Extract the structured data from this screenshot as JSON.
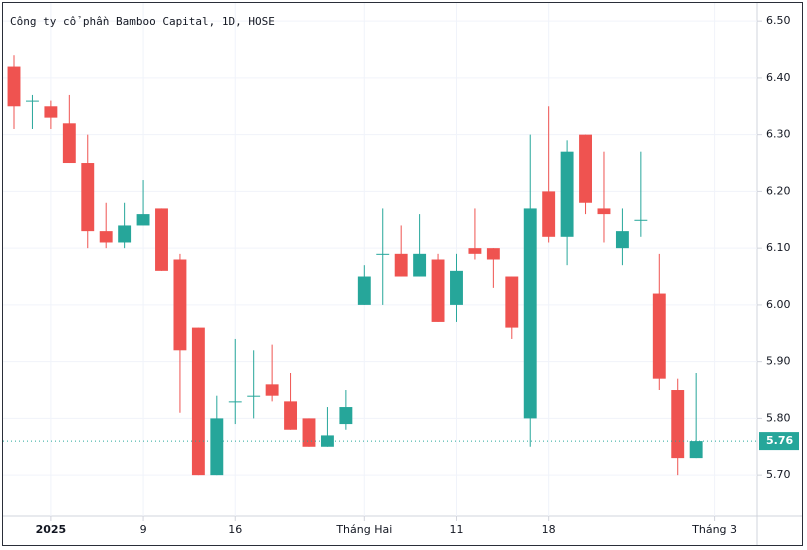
{
  "chart_data": {
    "type": "candlestick",
    "title": "Công ty cổ phần Bamboo Capital, 1D, HOSE",
    "open": [
      6.42,
      6.36,
      6.35,
      6.32,
      6.25,
      6.13,
      6.11,
      6.14,
      6.17,
      6.08,
      5.96,
      5.7,
      5.83,
      5.84,
      5.86,
      5.83,
      5.8,
      5.75,
      5.79,
      6.0,
      6.09,
      6.09,
      6.05,
      6.08,
      6.0,
      6.1,
      6.1,
      6.05,
      5.8,
      6.2,
      6.12,
      6.3,
      6.17,
      6.1,
      6.15,
      6.02,
      5.85,
      5.73
    ],
    "high": [
      6.44,
      6.37,
      6.36,
      6.37,
      6.3,
      6.18,
      6.18,
      6.22,
      6.17,
      6.09,
      5.96,
      5.84,
      5.94,
      5.92,
      5.93,
      5.88,
      5.8,
      5.82,
      5.85,
      6.07,
      6.17,
      6.14,
      6.16,
      6.09,
      6.09,
      6.17,
      6.1,
      6.05,
      6.3,
      6.35,
      6.29,
      6.3,
      6.27,
      6.17,
      6.27,
      6.09,
      5.87,
      5.88
    ],
    "low": [
      6.31,
      6.31,
      6.31,
      6.25,
      6.1,
      6.1,
      6.1,
      6.14,
      6.06,
      5.81,
      5.7,
      5.7,
      5.79,
      5.8,
      5.83,
      5.78,
      5.75,
      5.75,
      5.78,
      6.0,
      6.0,
      6.05,
      6.05,
      5.97,
      5.97,
      6.08,
      6.03,
      5.94,
      5.75,
      6.11,
      6.07,
      6.16,
      6.11,
      6.07,
      6.12,
      5.85,
      5.7,
      5.73
    ],
    "close": [
      6.35,
      6.36,
      6.33,
      6.25,
      6.13,
      6.11,
      6.14,
      6.16,
      6.06,
      5.92,
      5.7,
      5.8,
      5.83,
      5.84,
      5.84,
      5.78,
      5.75,
      5.77,
      5.82,
      6.05,
      6.09,
      6.05,
      6.09,
      5.97,
      6.06,
      6.09,
      6.08,
      5.96,
      6.17,
      6.12,
      6.27,
      6.18,
      6.16,
      6.13,
      6.15,
      5.87,
      5.73,
      5.76
    ],
    "up_color": "#26a69a",
    "down_color": "#ef5350",
    "last_price": 5.76,
    "xlim": [
      -0.76,
      40.3
    ],
    "xticks": [
      {
        "value": 2,
        "label": "2025"
      },
      {
        "value": 7,
        "label": "9"
      },
      {
        "value": 12,
        "label": "16"
      },
      {
        "value": 19,
        "label": "Tháng Hai"
      },
      {
        "value": 24,
        "label": "11"
      },
      {
        "value": 29,
        "label": "18"
      },
      {
        "value": 38,
        "label": "Tháng 3"
      }
    ],
    "ylim": [
      5.628,
      6.532
    ],
    "yticks": [
      {
        "value": 5.7,
        "label": "5.70"
      },
      {
        "value": 5.8,
        "label": "5.80"
      },
      {
        "value": 5.9,
        "label": "5.90"
      },
      {
        "value": 6.0,
        "label": "6.00"
      },
      {
        "value": 6.1,
        "label": "6.10"
      },
      {
        "value": 6.2,
        "label": "6.20"
      },
      {
        "value": 6.3,
        "label": "6.30"
      },
      {
        "value": 6.4,
        "label": "6.40"
      },
      {
        "value": 6.5,
        "label": "6.50"
      }
    ],
    "grid": true
  }
}
